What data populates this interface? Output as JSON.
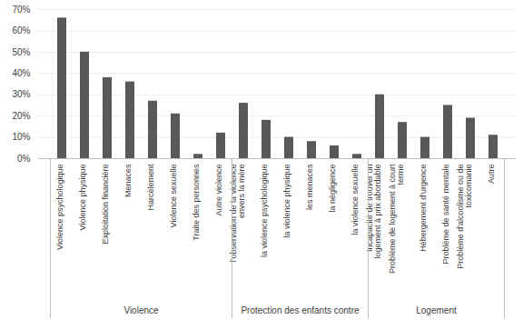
{
  "chart_data": {
    "type": "bar",
    "categories": [
      "Violence psychologique",
      "Violence physique",
      "Exploitation financière",
      "Menaces",
      "Harcèlement",
      "Violence sexuelle",
      "Traite des personnes",
      "Autre violence",
      "l'observation de la violence envers la mère",
      "la violence psychologique",
      "la violence physique",
      "les menaces",
      "la négligence",
      "la violence sexuelle",
      "Incapacité de trouver un logement à prix abordable",
      "Problème de logement à court terme",
      "Hébergement d'urgence",
      "Problème de santé mentale",
      "Problème d'alcoolisme ou de toxicomanie",
      "Autre"
    ],
    "groups": [
      "Violence",
      "Violence",
      "Violence",
      "Violence",
      "Violence",
      "Violence",
      "Violence",
      "Violence",
      "Protection des enfants contre",
      "Protection des enfants contre",
      "Protection des enfants contre",
      "Protection des enfants contre",
      "Protection des enfants contre",
      "Protection des enfants contre",
      "Logement",
      "Logement",
      "Logement",
      "Logement",
      "Logement",
      "Logement"
    ],
    "values": [
      66,
      50,
      38,
      36,
      27,
      21,
      2,
      12,
      26,
      18,
      10,
      8,
      6,
      2,
      30,
      17,
      10,
      25,
      19,
      11
    ],
    "color": "#595959",
    "ylim": [
      0,
      70
    ],
    "yticks": [
      {
        "value": 0,
        "label": "0%"
      },
      {
        "value": 10,
        "label": "10%"
      },
      {
        "value": 20,
        "label": "20%"
      },
      {
        "value": 30,
        "label": "30%"
      },
      {
        "value": 40,
        "label": "40%"
      },
      {
        "value": 50,
        "label": "50%"
      },
      {
        "value": 60,
        "label": "60%"
      },
      {
        "value": 70,
        "label": "70%"
      }
    ],
    "grid": true
  }
}
